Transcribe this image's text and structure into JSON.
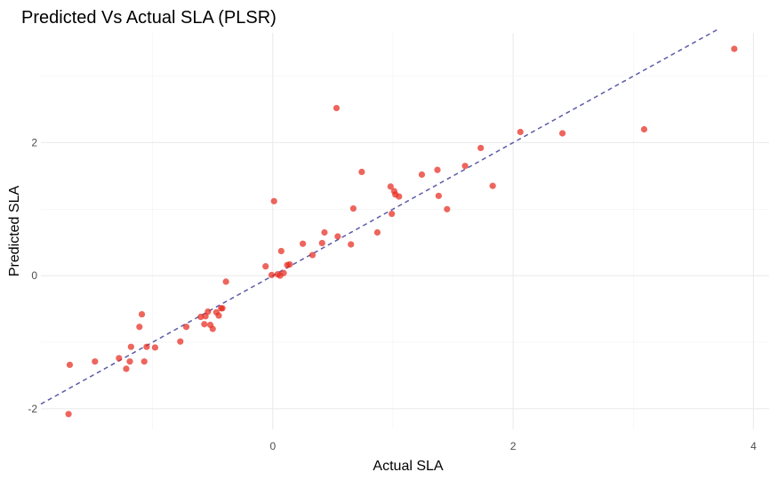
{
  "chart_data": {
    "type": "scatter",
    "title": "Predicted Vs Actual SLA (PLSR)",
    "xlabel": "Actual SLA",
    "ylabel": "Predicted SLA",
    "xlim": [
      -1.93,
      4.13
    ],
    "ylim": [
      -2.31,
      3.65
    ],
    "x_ticks": [
      0,
      2,
      4
    ],
    "y_ticks": [
      -2,
      0,
      2
    ],
    "x_tick_labels": [
      "0",
      "2",
      "4"
    ],
    "y_tick_labels": [
      "-2",
      "0",
      "2"
    ],
    "grid": true,
    "reference_line": {
      "style": "dashed",
      "color": "#5b5ba8",
      "x": [
        -1.93,
        3.72
      ],
      "y": [
        -1.93,
        3.72
      ]
    },
    "point_color": "#e8291f",
    "points": [
      [
        -1.7,
        -2.08
      ],
      [
        -1.69,
        -1.34
      ],
      [
        -1.48,
        -1.29
      ],
      [
        -1.28,
        -1.24
      ],
      [
        -1.22,
        -1.4
      ],
      [
        -1.19,
        -1.29
      ],
      [
        -1.18,
        -1.07
      ],
      [
        -1.11,
        -0.77
      ],
      [
        -1.09,
        -0.58
      ],
      [
        -1.07,
        -1.29
      ],
      [
        -1.05,
        -1.07
      ],
      [
        -0.98,
        -1.08
      ],
      [
        -0.77,
        -0.99
      ],
      [
        -0.72,
        -0.77
      ],
      [
        -0.6,
        -0.62
      ],
      [
        -0.57,
        -0.73
      ],
      [
        -0.56,
        -0.61
      ],
      [
        -0.54,
        -0.54
      ],
      [
        -0.52,
        -0.74
      ],
      [
        -0.5,
        -0.8
      ],
      [
        -0.47,
        -0.55
      ],
      [
        -0.45,
        -0.6
      ],
      [
        -0.43,
        -0.49
      ],
      [
        -0.42,
        -0.49
      ],
      [
        -0.39,
        -0.09
      ],
      [
        -0.06,
        0.14
      ],
      [
        -0.01,
        0.01
      ],
      [
        0.01,
        1.12
      ],
      [
        0.04,
        0.02
      ],
      [
        0.06,
        0.0
      ],
      [
        0.07,
        0.37
      ],
      [
        0.09,
        0.04
      ],
      [
        0.12,
        0.16
      ],
      [
        0.14,
        0.17
      ],
      [
        0.25,
        0.48
      ],
      [
        0.33,
        0.31
      ],
      [
        0.41,
        0.49
      ],
      [
        0.43,
        0.65
      ],
      [
        0.53,
        2.52
      ],
      [
        0.54,
        0.59
      ],
      [
        0.65,
        0.47
      ],
      [
        0.67,
        1.01
      ],
      [
        0.74,
        1.56
      ],
      [
        0.87,
        0.65
      ],
      [
        0.98,
        1.34
      ],
      [
        0.99,
        0.93
      ],
      [
        1.01,
        1.27
      ],
      [
        1.02,
        1.22
      ],
      [
        1.05,
        1.19
      ],
      [
        1.24,
        1.52
      ],
      [
        1.37,
        1.59
      ],
      [
        1.38,
        1.2
      ],
      [
        1.45,
        1.0
      ],
      [
        1.6,
        1.65
      ],
      [
        1.73,
        1.92
      ],
      [
        1.83,
        1.35
      ],
      [
        2.06,
        2.16
      ],
      [
        2.41,
        2.14
      ],
      [
        3.09,
        2.2
      ],
      [
        3.84,
        3.41
      ]
    ]
  }
}
